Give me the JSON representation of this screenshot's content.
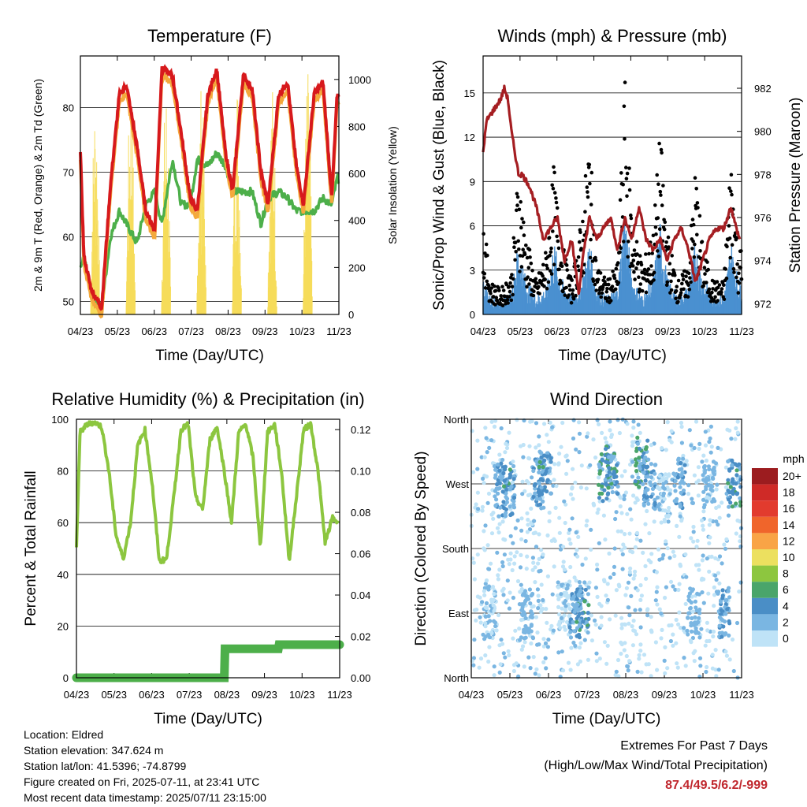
{
  "footer": {
    "location": "Location: Eldred",
    "elevation": "Station elevation: 347.624 m",
    "latlon": "Station lat/lon: 41.5396; -74.8799",
    "created": "Figure created on Fri, 2025-07-11, at 23:41 UTC",
    "timestamp": "Most recent data timestamp: 2025/07/11 23:15:00",
    "extremes_title": "Extremes For Past 7 Days",
    "extremes_sub": "(High/Low/Max Wind/Total Precipitation)",
    "extremes_values": "87.4/49.5/6.2/-999"
  },
  "colors": {
    "temp2m": "#d7191c",
    "temp9m": "#f4a93c",
    "dewpoint": "#4daf4a",
    "solar": "#f6dc5a",
    "gust": "#000000",
    "sonic": "#4a90d0",
    "pressure": "#a51e22",
    "rh": "#8cc63f",
    "rain": "#4daf4a"
  },
  "chart_data": [
    {
      "type": "line",
      "title": "Temperature (F)",
      "xlabel": "Time (Day/UTC)",
      "ylabel": "2m & 9m T (Red, Orange) & 2m Td (Green)",
      "y2label": "Solar Insolation (Yellow)",
      "x_ticks": [
        "04/23",
        "05/23",
        "06/23",
        "07/23",
        "08/23",
        "09/23",
        "10/23",
        "11/23"
      ],
      "xlim": [
        0,
        7.3
      ],
      "ylim": [
        48,
        88
      ],
      "y_ticks": [
        50,
        60,
        70,
        80
      ],
      "y2lim": [
        0,
        1100
      ],
      "y2_ticks": [
        0,
        200,
        400,
        600,
        800,
        1000
      ],
      "grid": true,
      "series": [
        {
          "key": "temp2m",
          "axis": "left",
          "x": [
            0,
            0.1,
            0.3,
            0.6,
            0.85,
            1.1,
            1.3,
            1.6,
            1.85,
            2.1,
            2.3,
            2.6,
            2.85,
            3.1,
            3.3,
            3.6,
            3.85,
            4.1,
            4.3,
            4.6,
            4.85,
            5.1,
            5.3,
            5.6,
            5.85,
            6.1,
            6.3,
            6.6,
            6.85,
            7.1,
            7.25
          ],
          "values": [
            73,
            57,
            52,
            49,
            68,
            82,
            83.5,
            74,
            64,
            61,
            86,
            85,
            76,
            66,
            64,
            82,
            86,
            73,
            67,
            85,
            83,
            70,
            65,
            82,
            84,
            71,
            65,
            82,
            84,
            66,
            82
          ]
        },
        {
          "key": "dewpoint",
          "axis": "left",
          "x": [
            0,
            0.1,
            0.3,
            0.6,
            0.85,
            1.1,
            1.3,
            1.6,
            1.85,
            2.1,
            2.3,
            2.6,
            2.85,
            3.1,
            3.3,
            3.6,
            3.85,
            4.1,
            4.3,
            4.6,
            4.85,
            5.1,
            5.3,
            5.6,
            5.85,
            6.1,
            6.3,
            6.6,
            6.85,
            7.1,
            7.25
          ],
          "values": [
            55,
            57,
            51,
            49,
            60,
            64,
            62,
            59,
            65,
            67,
            62,
            72,
            65,
            65,
            72,
            71,
            73,
            71,
            67,
            67,
            67,
            62,
            66,
            67,
            66,
            64,
            64,
            64,
            66,
            65,
            69
          ]
        },
        {
          "key": "solar",
          "axis": "right",
          "x": [
            0.25,
            0.5,
            1.25,
            1.5,
            2.25,
            2.5,
            3.25,
            3.5,
            4.25,
            4.5,
            5.25,
            5.5,
            6.25,
            6.5
          ],
          "values": [
            0,
            950,
            0,
            1000,
            0,
            1000,
            0,
            1000,
            0,
            1050,
            0,
            1000,
            0,
            1050
          ]
        }
      ]
    },
    {
      "type": "line",
      "title": "Winds (mph) & Pressure (mb)",
      "xlabel": "Time (Day/UTC)",
      "ylabel": "Sonic/Prop Wind & Gust (Blue, Black)",
      "y2label": "Station Pressure (Maroon)",
      "x_ticks": [
        "04/23",
        "05/23",
        "06/23",
        "07/23",
        "08/23",
        "09/23",
        "10/23",
        "11/23"
      ],
      "xlim": [
        0,
        7.3
      ],
      "ylim": [
        0,
        17.5
      ],
      "y_ticks": [
        0,
        3,
        6,
        9,
        12,
        15
      ],
      "y2lim": [
        971.5,
        983.5
      ],
      "y2_ticks": [
        972,
        974,
        976,
        978,
        980,
        982
      ],
      "grid": true,
      "series": [
        {
          "key": "pressure",
          "axis": "right",
          "x": [
            0,
            0.1,
            0.3,
            0.5,
            0.6,
            0.7,
            0.8,
            0.9,
            1.0,
            1.1,
            1.3,
            1.5,
            1.7,
            1.9,
            2.1,
            2.3,
            2.5,
            2.7,
            2.85,
            3.0,
            3.2,
            3.4,
            3.6,
            3.8,
            4.0,
            4.2,
            4.4,
            4.6,
            4.8,
            5.0,
            5.2,
            5.4,
            5.6,
            5.8,
            6.0,
            6.2,
            6.4,
            6.6,
            6.8,
            7.0,
            7.15,
            7.25
          ],
          "values": [
            979,
            980.5,
            981,
            981.5,
            982,
            981.5,
            980,
            979,
            978,
            978,
            977.5,
            976.5,
            975,
            975.5,
            976,
            974,
            975,
            972.5,
            974.5,
            976,
            975,
            975.5,
            976,
            974.5,
            976,
            975,
            976.5,
            975,
            974.5,
            975,
            974,
            975,
            975.5,
            974.5,
            973,
            974,
            975,
            975.5,
            975.5,
            976.5,
            975.5,
            975
          ]
        },
        {
          "key": "gust",
          "axis": "left",
          "x": [
            0,
            0.2,
            0.5,
            0.8,
            1.0,
            1.2,
            1.5,
            1.8,
            2.0,
            2.2,
            2.5,
            2.8,
            3.0,
            3.2,
            3.5,
            3.8,
            4.0,
            4.2,
            4.5,
            4.8,
            5.0,
            5.2,
            5.5,
            5.8,
            6.0,
            6.2,
            6.5,
            6.8,
            7.0,
            7.2
          ],
          "values": [
            6,
            2,
            1.5,
            2.5,
            9,
            5,
            2,
            4,
            9,
            4.5,
            2,
            6,
            11,
            3,
            2,
            3,
            14,
            6,
            3,
            5,
            11,
            5,
            2,
            3,
            9,
            4,
            2,
            2,
            10,
            4
          ]
        },
        {
          "key": "sonic",
          "axis": "left",
          "x": [
            0,
            0.2,
            0.5,
            0.8,
            1.0,
            1.2,
            1.5,
            1.8,
            2.0,
            2.2,
            2.5,
            2.8,
            3.0,
            3.2,
            3.5,
            3.8,
            4.0,
            4.2,
            4.5,
            4.8,
            5.0,
            5.2,
            5.5,
            5.8,
            6.0,
            6.2,
            6.5,
            6.8,
            7.0,
            7.2
          ],
          "values": [
            2,
            1,
            0.8,
            1.2,
            4,
            2,
            1,
            1.5,
            4,
            2,
            1,
            2,
            4,
            1.5,
            1,
            1.5,
            6,
            2,
            1,
            2,
            5,
            2,
            1,
            1.5,
            4,
            2,
            1,
            1,
            4,
            2
          ]
        }
      ]
    },
    {
      "type": "line",
      "title": "Relative Humidity (%) & Precipitation (in)",
      "xlabel": "Time (Day/UTC)",
      "ylabel": "Percent & Total Rainfall",
      "x_ticks": [
        "04/23",
        "05/23",
        "06/23",
        "07/23",
        "08/23",
        "09/23",
        "10/23",
        "11/23"
      ],
      "xlim": [
        0,
        7.3
      ],
      "ylim": [
        0,
        100
      ],
      "y_ticks": [
        0,
        20,
        40,
        60,
        80,
        100
      ],
      "y2lim": [
        0,
        0.125
      ],
      "y2_ticks": [
        "0.00",
        "0.02",
        "0.04",
        "0.06",
        "0.08",
        "0.10",
        "0.12"
      ],
      "grid": true,
      "series": [
        {
          "key": "rh",
          "axis": "left",
          "x": [
            0,
            0.1,
            0.3,
            0.5,
            0.7,
            0.9,
            1.1,
            1.3,
            1.5,
            1.7,
            1.9,
            2.1,
            2.3,
            2.5,
            2.7,
            2.9,
            3.1,
            3.3,
            3.5,
            3.7,
            3.9,
            4.1,
            4.3,
            4.5,
            4.7,
            4.9,
            5.1,
            5.3,
            5.5,
            5.7,
            5.9,
            6.1,
            6.3,
            6.5,
            6.7,
            6.9,
            7.1,
            7.25
          ],
          "values": [
            50,
            95,
            98,
            99,
            97,
            80,
            55,
            46,
            60,
            90,
            96,
            75,
            45,
            46,
            70,
            96,
            98,
            70,
            65,
            92,
            97,
            80,
            60,
            95,
            98,
            85,
            50,
            95,
            98,
            78,
            45,
            70,
            96,
            98,
            80,
            52,
            62,
            60
          ]
        },
        {
          "key": "rain",
          "axis": "right",
          "x": [
            0,
            4.1,
            4.12,
            5.6,
            5.62,
            7.3
          ],
          "values": [
            0,
            0,
            0.014,
            0.014,
            0.016,
            0.016
          ]
        }
      ]
    },
    {
      "type": "scatter",
      "title": "Wind Direction",
      "xlabel": "Time (Day/UTC)",
      "ylabel": "Direction (Colored By Speed)",
      "x_ticks": [
        "04/23",
        "05/23",
        "06/23",
        "07/23",
        "08/23",
        "09/23",
        "10/23",
        "11/23"
      ],
      "xlim": [
        0,
        7.3
      ],
      "y_ticks": [
        "North",
        "East",
        "South",
        "West",
        "North"
      ],
      "ylim": [
        0,
        360
      ],
      "legend": {
        "title": "mph",
        "labels": [
          "20+",
          "18",
          "16",
          "14",
          "12",
          "10",
          "8",
          "6",
          "4",
          "2",
          "0"
        ],
        "colors": [
          "#9c1c1f",
          "#cf2a27",
          "#e23b2e",
          "#f0652b",
          "#f9a446",
          "#ece05f",
          "#8dc63f",
          "#4aa56a",
          "#4a8ec6",
          "#7ab6e2",
          "#bfe3f7"
        ],
        "placement": "right"
      },
      "clusters": [
        {
          "x": 0.5,
          "dir": 90,
          "speed": 1
        },
        {
          "x": 0.8,
          "dir": 270,
          "speed": 3
        },
        {
          "x": 1.0,
          "dir": 260,
          "speed": 4
        },
        {
          "x": 1.5,
          "dir": 90,
          "speed": 2
        },
        {
          "x": 1.8,
          "dir": 270,
          "speed": 3
        },
        {
          "x": 2.0,
          "dir": 280,
          "speed": 4
        },
        {
          "x": 2.5,
          "dir": 100,
          "speed": 1
        },
        {
          "x": 2.8,
          "dir": 90,
          "speed": 3
        },
        {
          "x": 3.0,
          "dir": 100,
          "speed": 4
        },
        {
          "x": 3.6,
          "dir": 280,
          "speed": 5
        },
        {
          "x": 3.8,
          "dir": 290,
          "speed": 4
        },
        {
          "x": 4.6,
          "dir": 300,
          "speed": 5
        },
        {
          "x": 4.8,
          "dir": 270,
          "speed": 3
        },
        {
          "x": 5.2,
          "dir": 250,
          "speed": 1
        },
        {
          "x": 5.6,
          "dir": 270,
          "speed": 3
        },
        {
          "x": 6.0,
          "dir": 90,
          "speed": 2
        },
        {
          "x": 6.4,
          "dir": 270,
          "speed": 2
        },
        {
          "x": 6.8,
          "dir": 90,
          "speed": 3
        },
        {
          "x": 7.1,
          "dir": 270,
          "speed": 4
        }
      ]
    }
  ]
}
